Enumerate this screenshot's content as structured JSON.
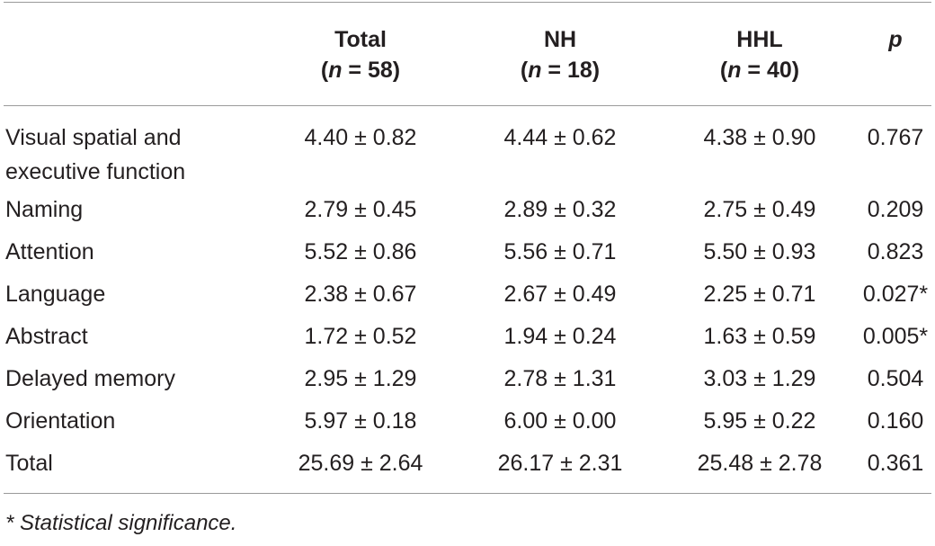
{
  "table": {
    "header": {
      "col0": "",
      "total_label": "Total",
      "total_n_prefix": "(",
      "total_n_var": "n",
      "total_n_value": " = 58)",
      "nh_label": "NH",
      "nh_n_prefix": "(",
      "nh_n_var": "n",
      "nh_n_value": " = 18)",
      "hhl_label": "HHL",
      "hhl_n_prefix": "(",
      "hhl_n_var": "n",
      "hhl_n_value": " = 40)",
      "p_label": "p"
    },
    "rows": [
      {
        "label": "Visual spatial and executive function",
        "total": "4.40 ± 0.82",
        "nh": "4.44 ± 0.62",
        "hhl": "4.38 ± 0.90",
        "p": "0.767"
      },
      {
        "label": "Naming",
        "total": "2.79 ± 0.45",
        "nh": "2.89 ± 0.32",
        "hhl": "2.75 ± 0.49",
        "p": "0.209"
      },
      {
        "label": "Attention",
        "total": "5.52 ± 0.86",
        "nh": "5.56 ± 0.71",
        "hhl": "5.50 ± 0.93",
        "p": "0.823"
      },
      {
        "label": "Language",
        "total": "2.38 ± 0.67",
        "nh": "2.67 ± 0.49",
        "hhl": "2.25 ± 0.71",
        "p": "0.027*"
      },
      {
        "label": "Abstract",
        "total": "1.72 ± 0.52",
        "nh": "1.94 ± 0.24",
        "hhl": "1.63 ± 0.59",
        "p": "0.005*"
      },
      {
        "label": "Delayed memory",
        "total": "2.95 ± 1.29",
        "nh": "2.78 ± 1.31",
        "hhl": "3.03 ± 1.29",
        "p": "0.504"
      },
      {
        "label": "Orientation",
        "total": "5.97 ± 0.18",
        "nh": "6.00 ± 0.00",
        "hhl": "5.95 ± 0.22",
        "p": "0.160"
      },
      {
        "label": "Total",
        "total": "25.69 ± 2.64",
        "nh": "26.17 ± 2.31",
        "hhl": "25.48 ± 2.78",
        "p": "0.361"
      }
    ]
  },
  "footnote": "* Statistical significance.",
  "colors": {
    "text": "#231f20",
    "rule": "#9a9a9a",
    "background": "#ffffff"
  }
}
